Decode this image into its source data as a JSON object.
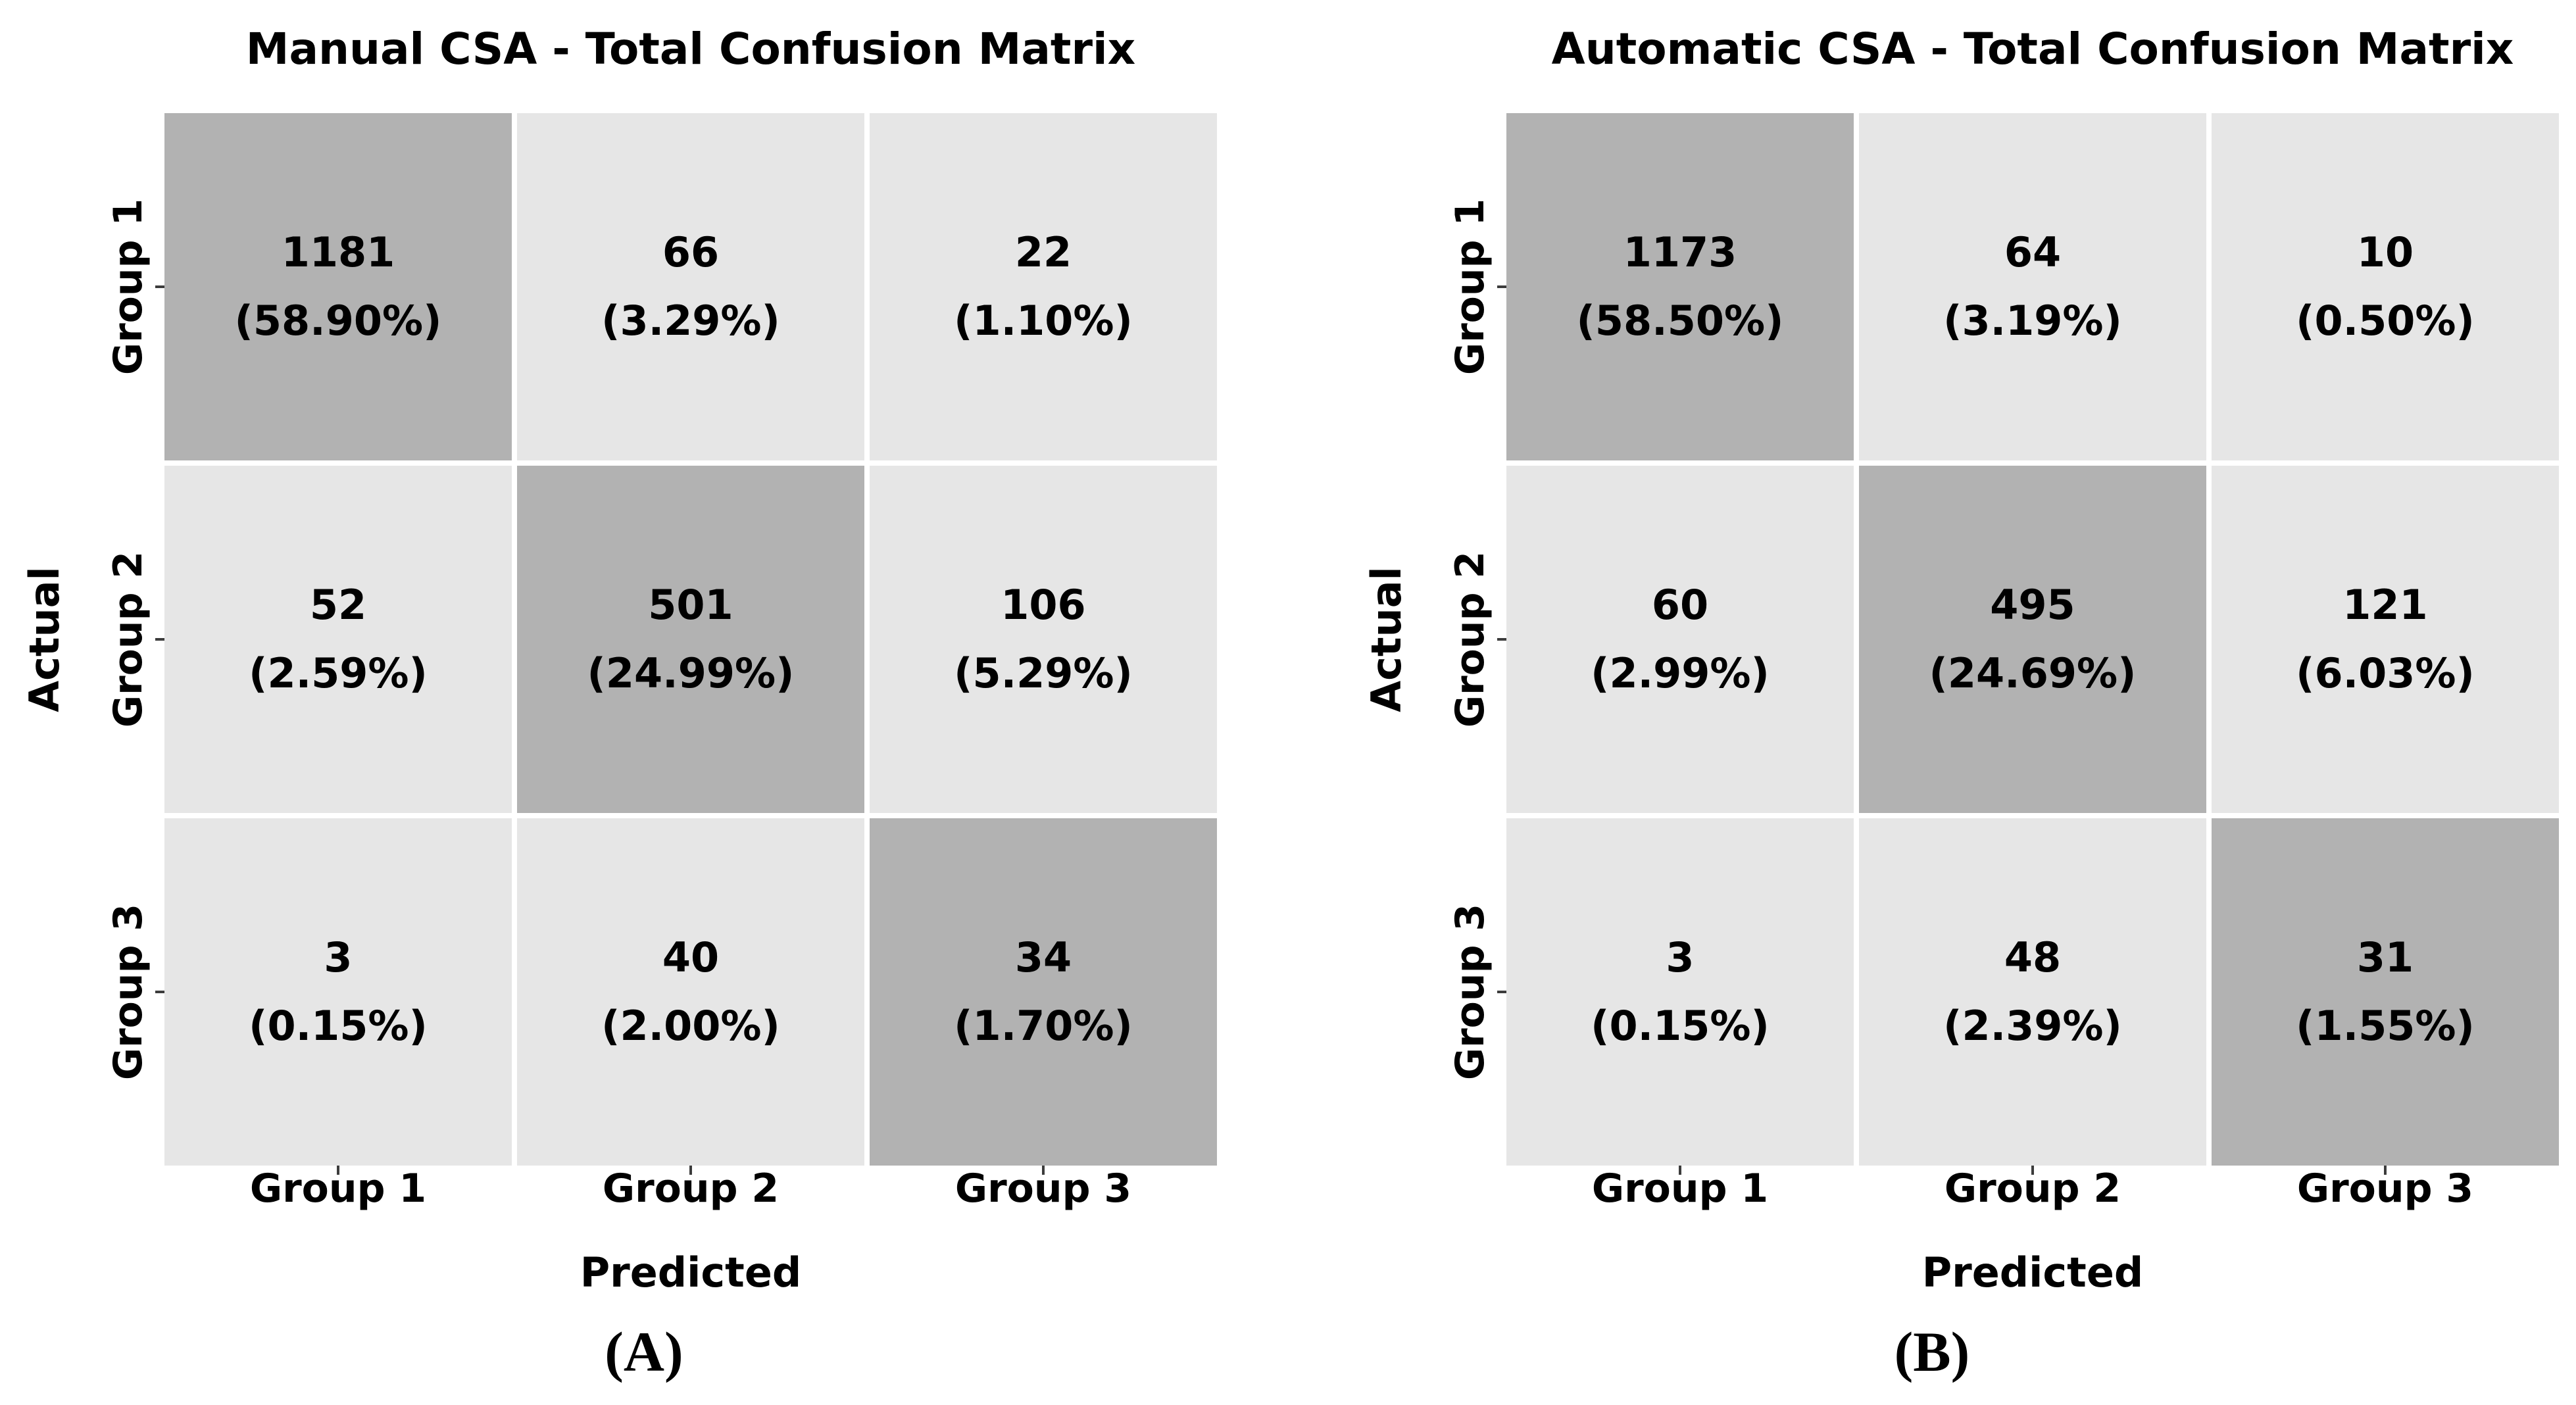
{
  "figure": {
    "colors": {
      "background": "#ffffff",
      "diagonal_cell": "#b2b2b2",
      "off_diagonal_cell": "#e6e6e6",
      "text": "#000000",
      "tick": "#3c3c3c"
    },
    "panels": [
      {
        "title": "Manual CSA - Total Confusion Matrix",
        "xlabel": "Predicted",
        "ylabel": "Actual",
        "xticks": [
          "Group 1",
          "Group 2",
          "Group 3"
        ],
        "yticks": [
          "Group 1",
          "Group 2",
          "Group 3"
        ],
        "caption": "(A)",
        "cells": [
          {
            "count": "1181",
            "pct": "(58.90%)"
          },
          {
            "count": "66",
            "pct": "(3.29%)"
          },
          {
            "count": "22",
            "pct": "(1.10%)"
          },
          {
            "count": "52",
            "pct": "(2.59%)"
          },
          {
            "count": "501",
            "pct": "(24.99%)"
          },
          {
            "count": "106",
            "pct": "(5.29%)"
          },
          {
            "count": "3",
            "pct": "(0.15%)"
          },
          {
            "count": "40",
            "pct": "(2.00%)"
          },
          {
            "count": "34",
            "pct": "(1.70%)"
          }
        ]
      },
      {
        "title": "Automatic CSA - Total Confusion Matrix",
        "xlabel": "Predicted",
        "ylabel": "Actual",
        "xticks": [
          "Group 1",
          "Group 2",
          "Group 3"
        ],
        "yticks": [
          "Group 1",
          "Group 2",
          "Group 3"
        ],
        "caption": "(B)",
        "cells": [
          {
            "count": "1173",
            "pct": "(58.50%)"
          },
          {
            "count": "64",
            "pct": "(3.19%)"
          },
          {
            "count": "10",
            "pct": "(0.50%)"
          },
          {
            "count": "60",
            "pct": "(2.99%)"
          },
          {
            "count": "495",
            "pct": "(24.69%)"
          },
          {
            "count": "121",
            "pct": "(6.03%)"
          },
          {
            "count": "3",
            "pct": "(0.15%)"
          },
          {
            "count": "48",
            "pct": "(2.39%)"
          },
          {
            "count": "31",
            "pct": "(1.55%)"
          }
        ]
      }
    ]
  },
  "chart_data": [
    {
      "type": "heatmap",
      "title": "Manual CSA - Total Confusion Matrix",
      "xlabel": "Predicted",
      "ylabel": "Actual",
      "x_categories": [
        "Group 1",
        "Group 2",
        "Group 3"
      ],
      "y_categories": [
        "Group 1",
        "Group 2",
        "Group 3"
      ],
      "values": [
        [
          1181,
          66,
          22
        ],
        [
          52,
          501,
          106
        ],
        [
          3,
          40,
          34
        ]
      ],
      "percentages": [
        [
          "58.90%",
          "3.29%",
          "1.10%"
        ],
        [
          "2.59%",
          "24.99%",
          "5.29%"
        ],
        [
          "0.15%",
          "2.00%",
          "1.70%"
        ]
      ],
      "caption": "(A)",
      "legend_position": "none",
      "grid": false,
      "color_scheme": "diagonal cells #b2b2b2, off-diagonal cells #e6e6e6"
    },
    {
      "type": "heatmap",
      "title": "Automatic CSA - Total Confusion Matrix",
      "xlabel": "Predicted",
      "ylabel": "Actual",
      "x_categories": [
        "Group 1",
        "Group 2",
        "Group 3"
      ],
      "y_categories": [
        "Group 1",
        "Group 2",
        "Group 3"
      ],
      "values": [
        [
          1173,
          64,
          10
        ],
        [
          60,
          495,
          121
        ],
        [
          3,
          48,
          31
        ]
      ],
      "percentages": [
        [
          "58.50%",
          "3.19%",
          "0.50%"
        ],
        [
          "2.99%",
          "24.69%",
          "6.03%"
        ],
        [
          "0.15%",
          "2.39%",
          "1.55%"
        ]
      ],
      "caption": "(B)",
      "legend_position": "none",
      "grid": false,
      "color_scheme": "diagonal cells #b2b2b2, off-diagonal cells #e6e6e6"
    }
  ]
}
